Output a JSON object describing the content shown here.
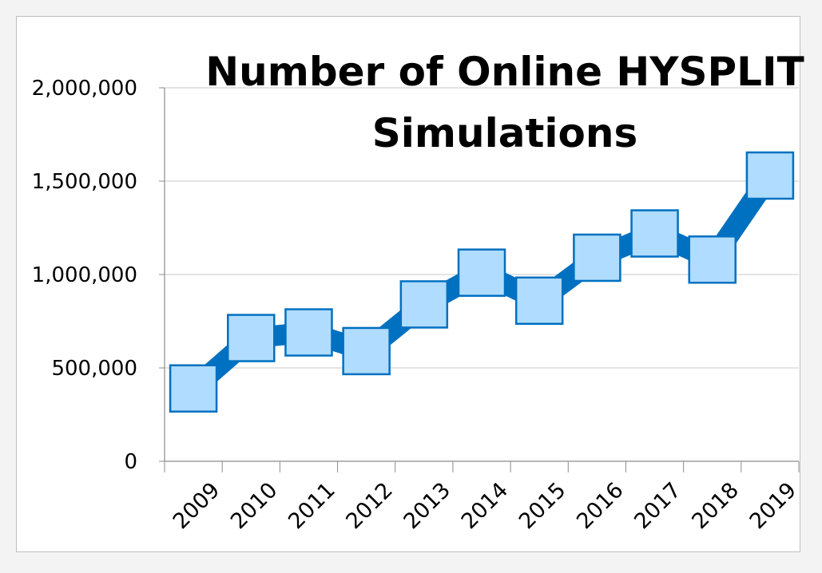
{
  "chart_data": {
    "type": "line",
    "title_lines": [
      "Number of Online HYSPLIT",
      "Simulations"
    ],
    "categories": [
      "2009",
      "2010",
      "2011",
      "2012",
      "2013",
      "2014",
      "2015",
      "2016",
      "2017",
      "2018",
      "2019"
    ],
    "values": [
      390000,
      660000,
      690000,
      590000,
      840000,
      1010000,
      860000,
      1090000,
      1220000,
      1080000,
      1530000
    ],
    "y_ticks": [
      0,
      500000,
      1000000,
      1500000,
      2000000
    ],
    "y_tick_labels": [
      "0",
      "500,000",
      "1,000,000",
      "1,500,000",
      "2,000,000"
    ],
    "ylim": [
      0,
      2000000
    ],
    "grid": true,
    "legend": "none",
    "colors": {
      "line": "#0070c0",
      "marker_fill": "#afdcff",
      "marker_edge": "#0070c0",
      "grid": "#c8c8c8",
      "axis": "#8c8c8c",
      "text": "#000000"
    }
  }
}
